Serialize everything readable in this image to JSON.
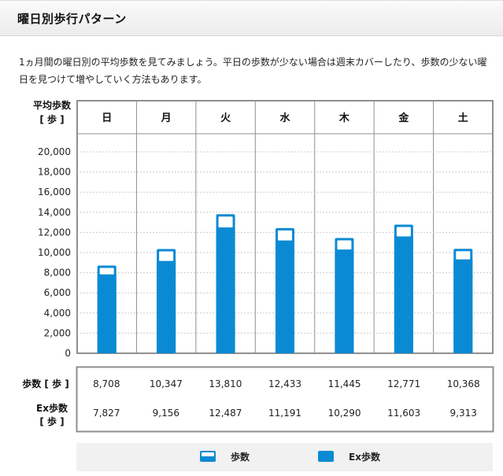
{
  "header": {
    "title": "曜日別歩行パターン"
  },
  "description": "1ヵ月間の曜日別の平均歩数を見てみましょう。平日の歩数が少ない場合は週末カバーしたり、歩数の少ない曜日を見つけて増やしていく方法もあります。",
  "chart_data": {
    "type": "bar",
    "y_axis_title_line1": "平均歩数",
    "y_axis_title_line2": "[ 歩 ]",
    "categories": [
      "日",
      "月",
      "火",
      "水",
      "木",
      "金",
      "土"
    ],
    "ylim": [
      0,
      20000
    ],
    "yticks": [
      "0",
      "2,000",
      "4,000",
      "6,000",
      "8,000",
      "10,000",
      "12,000",
      "14,000",
      "16,000",
      "18,000",
      "20,000"
    ],
    "series": [
      {
        "name": "歩数",
        "values": [
          8708,
          10347,
          13810,
          12433,
          11445,
          12771,
          10368
        ]
      },
      {
        "name": "Ex歩数",
        "values": [
          7827,
          9156,
          12487,
          11191,
          10290,
          11603,
          9313
        ]
      }
    ],
    "colors": {
      "bar": "#0b8ad4",
      "border": "#8f8f8f",
      "grid": "#cccccc"
    }
  },
  "table": {
    "rows": [
      {
        "label": "歩数 [ 歩 ]",
        "values": [
          "8,708",
          "10,347",
          "13,810",
          "12,433",
          "11,445",
          "12,771",
          "10,368"
        ]
      },
      {
        "label_line1": "Ex歩数",
        "label_line2": "[ 歩 ]",
        "values": [
          "7,827",
          "9,156",
          "12,487",
          "11,191",
          "10,290",
          "11,603",
          "9,313"
        ]
      }
    ]
  },
  "legend": {
    "steps": "歩数",
    "ex_steps": "Ex歩数"
  }
}
